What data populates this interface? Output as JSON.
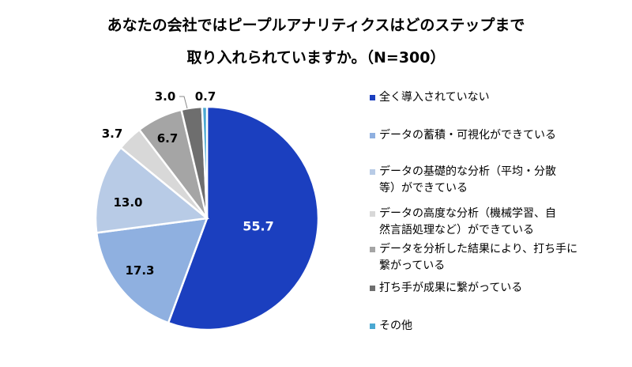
{
  "title_line1": "あなたの会社ではピープルアナリティクスはどのステップまで",
  "title_line2": "取り入れられていますか。（N=300）",
  "colors": [
    "#1b3fbf",
    "#8fb0e0",
    "#b8cbe6",
    "#d8d8d8",
    "#a5a5a5",
    "#6e6e6e",
    "#4aa8d2"
  ],
  "chart_data": {
    "type": "pie",
    "title": "あなたの会社ではピープルアナリティクスはどのステップまで取り入れられていますか。（N=300）",
    "categories": [
      "全く導入されていない",
      "データの蓄積・可視化ができている",
      "データの基礎的な分析（平均・分散等）ができている",
      "データの高度な分析（機械学習、自然言語処理など）ができている",
      "データを分析した結果により、打ち手に繋がっている",
      "打ち手が成果に繋がっている",
      "その他"
    ],
    "values": [
      55.7,
      17.3,
      13.0,
      3.7,
      6.7,
      3.0,
      0.7
    ],
    "value_labels": [
      "55.7",
      "17.3",
      "13.0",
      "3.7",
      "6.7",
      "3.0",
      "0.7"
    ],
    "legend_position": "right"
  },
  "legend": [
    {
      "text": "全く導入されていない"
    },
    {
      "text": "データの蓄積・可視化ができている"
    },
    {
      "text": "データの基礎的な分析（平均・分散\n等）ができている"
    },
    {
      "text": "データの高度な分析（機械学習、自\n然言語処理など）ができている"
    },
    {
      "text": "データを分析した結果により、打ち手に\n繋がっている"
    },
    {
      "text": "打ち手が成果に繋がっている"
    },
    {
      "text": "その他"
    }
  ]
}
